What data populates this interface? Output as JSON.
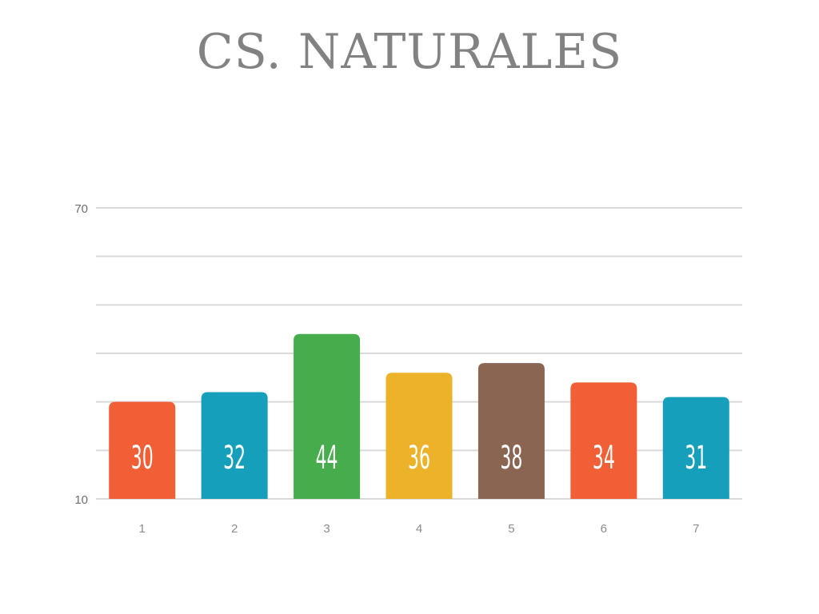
{
  "chart_data": {
    "type": "bar",
    "title": "CS. NATURALES",
    "categories": [
      "1",
      "2",
      "3",
      "4",
      "5",
      "6",
      "7"
    ],
    "values": [
      30,
      32,
      44,
      36,
      38,
      34,
      31
    ],
    "colors": [
      "#f05f35",
      "#169fbb",
      "#47ac4b",
      "#ebb22a",
      "#8a6552",
      "#f05f35",
      "#169fbb"
    ],
    "ylim": [
      10,
      70
    ],
    "yticks": [
      10,
      70
    ],
    "grid": true,
    "xlabel": "",
    "ylabel": ""
  }
}
